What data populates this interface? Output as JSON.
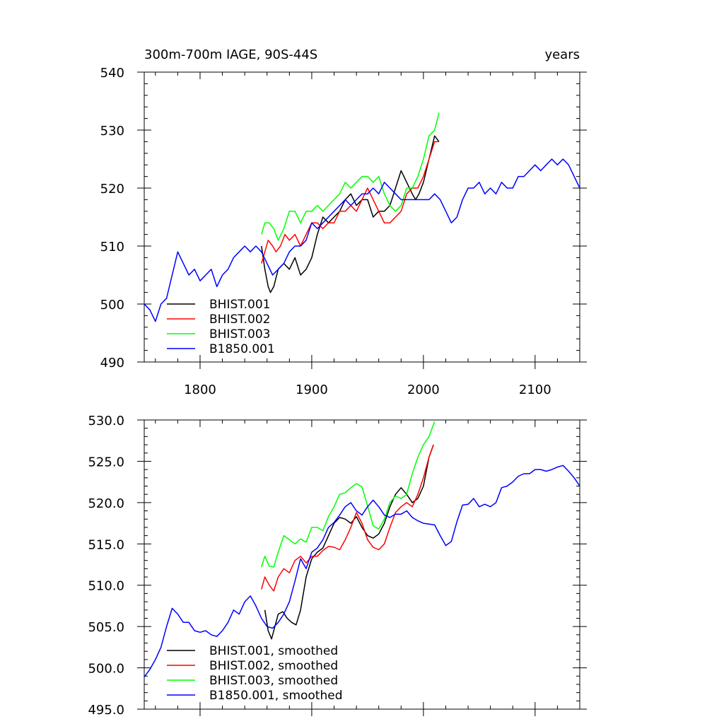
{
  "chart_data": [
    {
      "type": "line",
      "title": "300m-700m IAGE, 90S-44S",
      "title_right": "years",
      "xlim": [
        1750,
        2140
      ],
      "ylim": [
        490,
        540
      ],
      "xticks": [
        1800,
        1900,
        2000,
        2100
      ],
      "yticks": [
        490,
        500,
        510,
        520,
        530,
        540
      ],
      "ytick_labels": [
        "490",
        "500",
        "510",
        "520",
        "530",
        "540"
      ],
      "grid": false,
      "legend_position": "bottom-left",
      "series": [
        {
          "name": "BHIST.001",
          "color": "#000000",
          "x": [
            1855,
            1858,
            1861,
            1863,
            1866,
            1870,
            1875,
            1880,
            1885,
            1890,
            1895,
            1900,
            1905,
            1910,
            1915,
            1920,
            1925,
            1930,
            1935,
            1940,
            1945,
            1950,
            1955,
            1960,
            1965,
            1970,
            1975,
            1980,
            1985,
            1990,
            1993,
            1996,
            2000,
            2005,
            2010,
            2014
          ],
          "y": [
            510,
            506,
            503,
            502,
            503,
            506,
            507,
            506,
            508,
            505,
            506,
            508,
            512,
            515,
            514,
            515,
            516,
            518,
            519,
            517,
            518,
            518,
            515,
            516,
            516,
            517,
            520,
            523,
            521,
            519,
            518,
            519,
            521,
            525,
            529,
            528
          ]
        },
        {
          "name": "BHIST.002",
          "color": "#ff0000",
          "x": [
            1855,
            1858,
            1861,
            1865,
            1868,
            1872,
            1876,
            1880,
            1885,
            1890,
            1895,
            1900,
            1905,
            1910,
            1915,
            1920,
            1925,
            1930,
            1935,
            1940,
            1945,
            1950,
            1955,
            1960,
            1965,
            1970,
            1975,
            1980,
            1985,
            1990,
            1995,
            2000,
            2005,
            2010,
            2014
          ],
          "y": [
            507,
            509,
            511,
            510,
            509,
            510,
            512,
            511,
            512,
            510,
            512,
            514,
            514,
            513,
            514,
            514,
            516,
            516,
            517,
            516,
            518,
            520,
            518,
            516,
            514,
            514,
            515,
            516,
            519,
            520,
            520,
            522,
            525,
            528,
            528
          ]
        },
        {
          "name": "BHIST.003",
          "color": "#00ff00",
          "x": [
            1855,
            1858,
            1862,
            1866,
            1870,
            1875,
            1880,
            1885,
            1890,
            1895,
            1900,
            1905,
            1910,
            1915,
            1920,
            1925,
            1930,
            1935,
            1940,
            1945,
            1950,
            1955,
            1960,
            1965,
            1970,
            1975,
            1980,
            1985,
            1990,
            1995,
            2000,
            2005,
            2010,
            2014
          ],
          "y": [
            512,
            514,
            514,
            513,
            511,
            513,
            516,
            516,
            514,
            516,
            516,
            517,
            516,
            517,
            518,
            519,
            521,
            520,
            521,
            522,
            522,
            521,
            522,
            519,
            517,
            516,
            517,
            520,
            520,
            522,
            525,
            529,
            530,
            533
          ]
        },
        {
          "name": "B1850.001",
          "color": "#0000ff",
          "x": [
            1750,
            1755,
            1760,
            1765,
            1770,
            1775,
            1780,
            1785,
            1790,
            1795,
            1800,
            1805,
            1810,
            1815,
            1820,
            1825,
            1830,
            1835,
            1840,
            1845,
            1850,
            1855,
            1860,
            1865,
            1870,
            1875,
            1880,
            1885,
            1890,
            1895,
            1900,
            1905,
            1910,
            1915,
            1920,
            1925,
            1930,
            1935,
            1940,
            1945,
            1950,
            1955,
            1960,
            1965,
            1970,
            1975,
            1980,
            1985,
            1990,
            1995,
            2000,
            2005,
            2010,
            2015,
            2020,
            2025,
            2030,
            2035,
            2040,
            2045,
            2050,
            2055,
            2060,
            2065,
            2070,
            2075,
            2080,
            2085,
            2090,
            2095,
            2100,
            2105,
            2110,
            2115,
            2120,
            2125,
            2130,
            2135,
            2140
          ],
          "y": [
            500,
            499,
            497,
            500,
            501,
            505,
            509,
            507,
            505,
            506,
            504,
            505,
            506,
            503,
            505,
            506,
            508,
            509,
            510,
            509,
            510,
            509,
            507,
            505,
            506,
            507,
            509,
            510,
            510,
            511,
            514,
            513,
            514,
            515,
            516,
            517,
            518,
            517,
            518,
            519,
            519,
            520,
            519,
            521,
            520,
            519,
            518,
            518,
            518,
            518,
            518,
            518,
            519,
            518,
            516,
            514,
            515,
            518,
            520,
            520,
            521,
            519,
            520,
            519,
            521,
            520,
            520,
            522,
            522,
            523,
            524,
            523,
            524,
            525,
            524,
            525,
            524,
            522,
            520
          ]
        }
      ]
    },
    {
      "type": "line",
      "xlim": [
        1750,
        2140
      ],
      "ylim": [
        495,
        530
      ],
      "xticks": [
        1800,
        1900,
        2000,
        2100
      ],
      "yticks": [
        495,
        500,
        505,
        510,
        515,
        520,
        525,
        530
      ],
      "ytick_labels": [
        "495.0",
        "500.0",
        "505.0",
        "510.0",
        "515.0",
        "520.0",
        "525.0",
        "530.0"
      ],
      "grid": false,
      "legend_position": "bottom-left",
      "series": [
        {
          "name": "BHIST.001, smoothed",
          "color": "#000000",
          "x": [
            1858,
            1861,
            1864,
            1867,
            1870,
            1874,
            1878,
            1882,
            1886,
            1890,
            1895,
            1900,
            1905,
            1910,
            1915,
            1920,
            1925,
            1930,
            1935,
            1940,
            1945,
            1950,
            1955,
            1960,
            1965,
            1970,
            1975,
            1980,
            1985,
            1990,
            1995,
            2000,
            2005,
            2009
          ],
          "y": [
            507,
            504.5,
            503.5,
            505,
            506.5,
            506.8,
            506,
            505.5,
            505.2,
            507,
            511,
            513.2,
            514,
            514.5,
            516,
            517.5,
            518.2,
            518,
            517.5,
            518.3,
            517,
            516,
            515.7,
            516.2,
            517.5,
            519.5,
            521,
            521.8,
            521,
            520,
            520.5,
            522,
            525.5,
            527
          ]
        },
        {
          "name": "BHIST.002, smoothed",
          "color": "#ff0000",
          "x": [
            1855,
            1858,
            1862,
            1866,
            1870,
            1875,
            1880,
            1885,
            1890,
            1895,
            1900,
            1905,
            1910,
            1915,
            1920,
            1925,
            1930,
            1935,
            1940,
            1945,
            1950,
            1955,
            1960,
            1965,
            1970,
            1975,
            1980,
            1985,
            1990,
            1995,
            2000,
            2005,
            2009
          ],
          "y": [
            509.5,
            511,
            510,
            509.3,
            511,
            512,
            511.5,
            513,
            513.5,
            512.7,
            513.5,
            513.5,
            514.2,
            514.7,
            514.6,
            514.3,
            515.5,
            517,
            518.8,
            517.5,
            515.5,
            514.6,
            514.3,
            515,
            517,
            518.8,
            519.5,
            520,
            519.5,
            521,
            523,
            525.5,
            527
          ]
        },
        {
          "name": "BHIST.003, smoothed",
          "color": "#00ff00",
          "x": [
            1855,
            1858,
            1862,
            1866,
            1870,
            1875,
            1880,
            1885,
            1890,
            1895,
            1900,
            1905,
            1910,
            1915,
            1920,
            1925,
            1930,
            1935,
            1940,
            1945,
            1950,
            1955,
            1960,
            1965,
            1970,
            1975,
            1980,
            1985,
            1990,
            1995,
            2000,
            2005,
            2010
          ],
          "y": [
            512.2,
            513.5,
            512.3,
            512.2,
            514,
            516,
            515.5,
            515,
            515.6,
            515.2,
            517,
            517,
            516.6,
            518.3,
            519.5,
            521,
            521.2,
            521.8,
            522.3,
            521.9,
            519.6,
            517.2,
            516.8,
            518,
            520,
            520.8,
            520.5,
            521,
            523.5,
            525.5,
            527,
            528,
            529.8
          ]
        },
        {
          "name": "B1850.001, smoothed",
          "color": "#0000ff",
          "x": [
            1750,
            1755,
            1760,
            1765,
            1770,
            1775,
            1780,
            1785,
            1790,
            1795,
            1800,
            1805,
            1810,
            1815,
            1820,
            1825,
            1830,
            1835,
            1840,
            1845,
            1850,
            1855,
            1860,
            1865,
            1870,
            1875,
            1880,
            1885,
            1890,
            1895,
            1900,
            1905,
            1910,
            1915,
            1920,
            1925,
            1930,
            1935,
            1940,
            1945,
            1950,
            1955,
            1960,
            1965,
            1970,
            1975,
            1980,
            1985,
            1990,
            1995,
            2000,
            2005,
            2010,
            2015,
            2020,
            2025,
            2030,
            2035,
            2040,
            2045,
            2050,
            2055,
            2060,
            2065,
            2070,
            2075,
            2080,
            2085,
            2090,
            2095,
            2100,
            2105,
            2110,
            2115,
            2120,
            2125,
            2130,
            2135,
            2140
          ],
          "y": [
            498.9,
            499.8,
            501,
            502.5,
            505,
            507.2,
            506.5,
            505.5,
            505.5,
            504.5,
            504.3,
            504.5,
            504,
            503.8,
            504.5,
            505.5,
            507,
            506.5,
            508,
            508.7,
            507.5,
            506,
            505,
            504.8,
            505.5,
            506.5,
            508,
            510.5,
            513.2,
            512,
            514,
            514.5,
            515.5,
            517,
            517.6,
            518.5,
            519.5,
            520,
            519,
            518.5,
            519.5,
            520.3,
            519.5,
            518.5,
            518.2,
            518.6,
            518.6,
            519,
            518.2,
            517.8,
            517.5,
            517.4,
            517.3,
            516,
            514.8,
            515.3,
            517.7,
            519.7,
            519.8,
            520.5,
            519.5,
            519.8,
            519.5,
            520,
            521.8,
            522,
            522.5,
            523.2,
            523.5,
            523.5,
            524,
            524,
            523.8,
            524,
            524.3,
            524.5,
            523.8,
            523,
            522
          ]
        }
      ]
    }
  ]
}
